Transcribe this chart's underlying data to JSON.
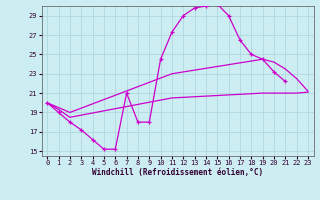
{
  "bg_color": "#cceef2",
  "grid_color": "#aad4da",
  "line_color": "#cc00cc",
  "xlabel": "Windchill (Refroidissement éolien,°C)",
  "xlim": [
    -0.5,
    23.5
  ],
  "ylim": [
    14.5,
    30.0
  ],
  "yticks": [
    15,
    17,
    19,
    21,
    23,
    25,
    27,
    29
  ],
  "xticks": [
    0,
    1,
    2,
    3,
    4,
    5,
    6,
    7,
    8,
    9,
    10,
    11,
    12,
    13,
    14,
    15,
    16,
    17,
    18,
    19,
    20,
    21,
    22,
    23
  ],
  "curve_main_x": [
    0,
    1,
    2,
    3,
    4,
    5,
    6,
    7,
    8,
    9,
    10,
    11,
    12,
    13,
    14,
    15,
    16,
    17,
    18,
    19,
    20,
    21
  ],
  "curve_main_y": [
    20.0,
    19.0,
    18.0,
    17.2,
    16.2,
    15.2,
    15.2,
    21.0,
    18.0,
    18.0,
    24.5,
    27.3,
    29.0,
    29.8,
    30.0,
    30.2,
    29.0,
    26.5,
    25.0,
    24.5,
    23.2,
    22.2
  ],
  "curve_upper_x": [
    0,
    1,
    2,
    11,
    19,
    20,
    21,
    22,
    23
  ],
  "curve_upper_y": [
    20.0,
    19.5,
    19.0,
    23.0,
    24.5,
    24.2,
    23.5,
    22.5,
    21.2
  ],
  "curve_lower_x": [
    0,
    1,
    2,
    11,
    19,
    20,
    21,
    22,
    23
  ],
  "curve_lower_y": [
    20.0,
    19.3,
    18.5,
    20.5,
    21.0,
    21.0,
    21.0,
    21.0,
    21.1
  ],
  "xlabel_fontsize": 5.5,
  "tick_fontsize": 5.0
}
